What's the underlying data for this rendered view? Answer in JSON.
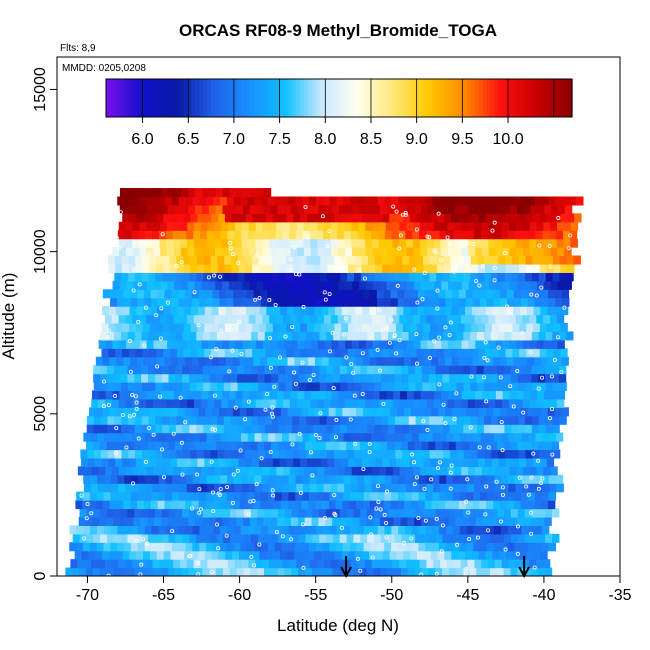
{
  "chart_data": {
    "type": "heatmap",
    "title": "ORCAS RF08-9 Methyl_Bromide_TOGA",
    "annotations": {
      "flights": "Flts: 8,9",
      "dates": "MMDD: 0205,0208"
    },
    "xlabel": "Latitude (deg N)",
    "ylabel": "Altitude (m)",
    "xlim": [
      -72,
      -35
    ],
    "ylim": [
      0,
      16000
    ],
    "x_ticks": [
      -70,
      -65,
      -60,
      -55,
      -50,
      -45,
      -40,
      -35
    ],
    "x_tick_labels": [
      "-70",
      "-65",
      "-60",
      "-55",
      "-50",
      "-45",
      "-40",
      "-35"
    ],
    "y_ticks": [
      0,
      5000,
      10000,
      15000
    ],
    "y_tick_labels": [
      "0",
      "5000",
      "10000",
      "15000"
    ],
    "colorbar": {
      "min": 5.6,
      "max": 10.7,
      "ticks": [
        6.0,
        6.5,
        7.0,
        7.5,
        8.0,
        8.5,
        9.0,
        9.5,
        10.0
      ],
      "tick_labels": [
        "6.0",
        "6.5",
        "7.0",
        "7.5",
        "8.0",
        "8.5",
        "9.0",
        "9.5",
        "10.0"
      ],
      "colors": [
        "#7a10f0",
        "#1010c8",
        "#0a1aa8",
        "#2060e8",
        "#1890ff",
        "#10c0ff",
        "#c8e8ff",
        "#fffff0",
        "#ffe878",
        "#ffc800",
        "#ff8a00",
        "#ff1010",
        "#c80000",
        "#8a0000"
      ]
    },
    "sounding_markers_lat": [
      -53,
      -41.3
    ],
    "grid": false
  }
}
